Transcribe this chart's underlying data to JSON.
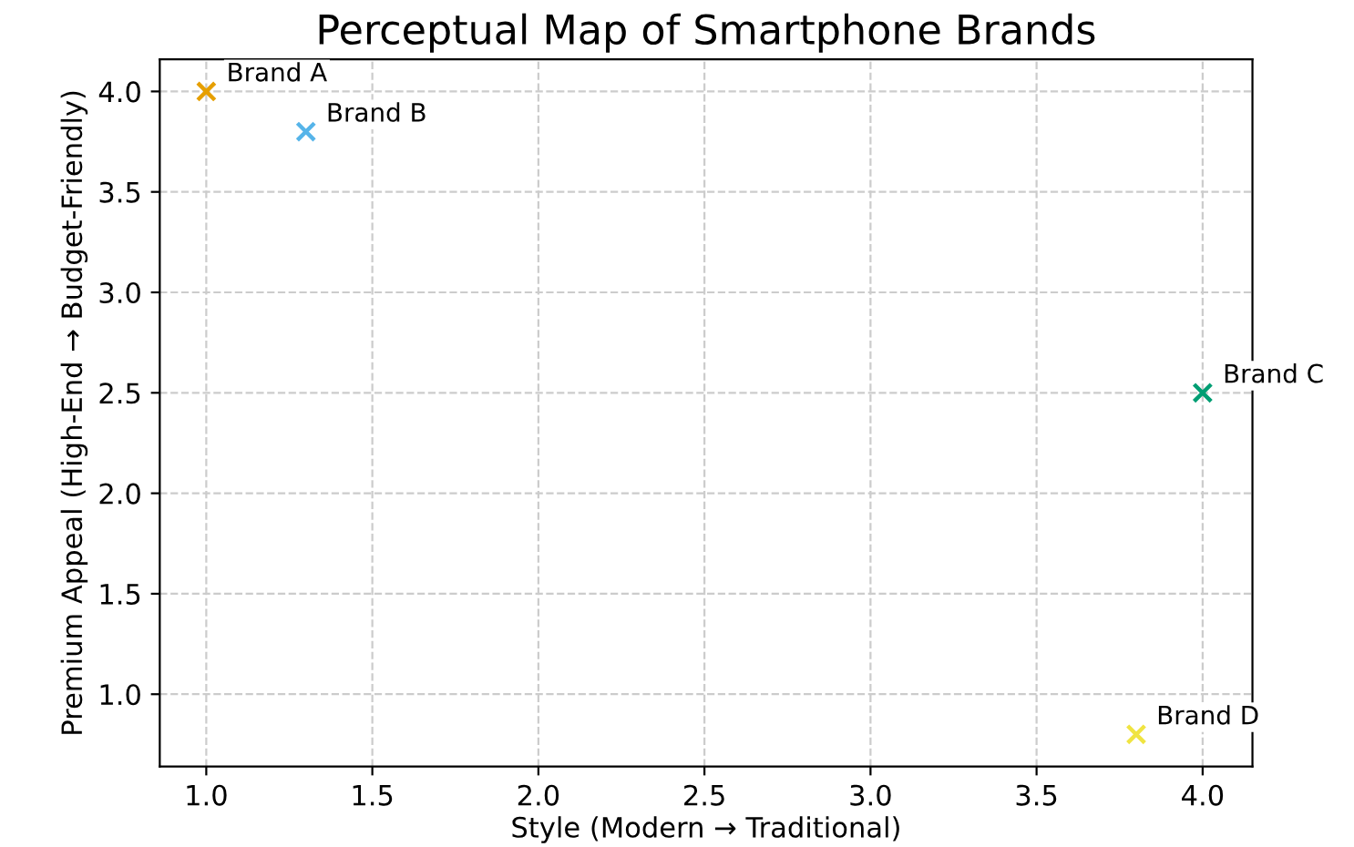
{
  "chart_data": {
    "type": "scatter",
    "title": "Perceptual Map of Smartphone Brands",
    "xlabel": "Style (Modern → Traditional)",
    "ylabel": "Premium Appeal (High-End → Budget-Friendly)",
    "series": [
      {
        "name": "Brand A",
        "color": "#e69f00",
        "x": [
          1.0
        ],
        "values": [
          4.0
        ]
      },
      {
        "name": "Brand B",
        "color": "#56b4e9",
        "x": [
          1.3
        ],
        "values": [
          3.8
        ]
      },
      {
        "name": "Brand C",
        "color": "#009e73",
        "x": [
          4.0
        ],
        "values": [
          2.5
        ]
      },
      {
        "name": "Brand D",
        "color": "#f0e442",
        "x": [
          3.8
        ],
        "values": [
          0.8
        ]
      }
    ],
    "xlim": [
      0.86,
      4.15
    ],
    "ylim": [
      0.64,
      4.16
    ],
    "xticks": [
      {
        "value": 1.0,
        "label": "1.0"
      },
      {
        "value": 1.5,
        "label": "1.5"
      },
      {
        "value": 2.0,
        "label": "2.0"
      },
      {
        "value": 2.5,
        "label": "2.5"
      },
      {
        "value": 3.0,
        "label": "3.0"
      },
      {
        "value": 3.5,
        "label": "3.5"
      },
      {
        "value": 4.0,
        "label": "4.0"
      }
    ],
    "yticks": [
      {
        "value": 1.0,
        "label": "1.0"
      },
      {
        "value": 1.5,
        "label": "1.5"
      },
      {
        "value": 2.0,
        "label": "2.0"
      },
      {
        "value": 2.5,
        "label": "2.5"
      },
      {
        "value": 3.0,
        "label": "3.0"
      },
      {
        "value": 3.5,
        "label": "3.5"
      },
      {
        "value": 4.0,
        "label": "4.0"
      }
    ],
    "grid": true,
    "line_style": "dashed",
    "marker": "cross",
    "legend": false
  }
}
